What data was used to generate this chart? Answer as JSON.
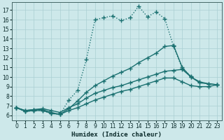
{
  "xlabel": "Humidex (Indice chaleur)",
  "xlim": [
    -0.5,
    23.5
  ],
  "ylim": [
    5.5,
    17.8
  ],
  "xticks": [
    0,
    1,
    2,
    3,
    4,
    5,
    6,
    7,
    8,
    9,
    10,
    11,
    12,
    13,
    14,
    15,
    16,
    17,
    18,
    19,
    20,
    21,
    22,
    23
  ],
  "yticks": [
    6,
    7,
    8,
    9,
    10,
    11,
    12,
    13,
    14,
    15,
    16,
    17
  ],
  "bg_color": "#cde8ea",
  "grid_color": "#aacfd2",
  "line_color": "#1a7070",
  "s1_x": [
    0,
    1,
    2,
    3,
    4,
    5,
    6,
    7,
    8,
    9,
    10,
    11,
    12,
    13,
    14,
    15,
    16,
    17,
    18,
    19,
    20
  ],
  "s1_y": [
    6.8,
    6.4,
    6.5,
    6.5,
    6.2,
    6.1,
    7.6,
    8.6,
    11.8,
    16.0,
    16.2,
    16.4,
    15.9,
    16.2,
    17.4,
    16.3,
    16.8,
    16.1,
    13.2,
    10.9,
    10.1
  ],
  "s1_style": ":",
  "s2_x": [
    0,
    1,
    2,
    3,
    4,
    5,
    6,
    7,
    8,
    9,
    10,
    11,
    12,
    13,
    14,
    15,
    16,
    17,
    18,
    19,
    20,
    21,
    22,
    23
  ],
  "s2_y": [
    6.8,
    6.4,
    6.5,
    6.5,
    6.2,
    6.1,
    6.7,
    7.5,
    8.4,
    9.1,
    9.6,
    10.1,
    10.5,
    10.9,
    11.5,
    12.0,
    12.5,
    13.2,
    13.3,
    11.0,
    10.0,
    9.5,
    9.3,
    9.2
  ],
  "s2_style": "-",
  "s3_x": [
    0,
    1,
    2,
    3,
    4,
    5,
    6,
    7,
    8,
    9,
    10,
    11,
    12,
    13,
    14,
    15,
    16,
    17,
    18,
    19,
    20,
    21,
    22,
    23
  ],
  "s3_y": [
    6.8,
    6.5,
    6.6,
    6.7,
    6.5,
    6.3,
    6.8,
    7.2,
    7.8,
    8.3,
    8.6,
    8.9,
    9.1,
    9.4,
    9.7,
    10.0,
    10.3,
    10.6,
    10.7,
    10.8,
    10.0,
    9.4,
    9.3,
    9.2
  ],
  "s3_style": "-",
  "s4_x": [
    0,
    1,
    2,
    3,
    4,
    5,
    6,
    7,
    8,
    9,
    10,
    11,
    12,
    13,
    14,
    15,
    16,
    17,
    18,
    19,
    20,
    21,
    22,
    23
  ],
  "s4_y": [
    6.8,
    6.5,
    6.6,
    6.6,
    6.3,
    6.1,
    6.5,
    6.8,
    7.2,
    7.6,
    7.9,
    8.2,
    8.5,
    8.7,
    9.0,
    9.3,
    9.6,
    9.9,
    9.9,
    9.5,
    9.1,
    9.0,
    9.0,
    9.2
  ],
  "s4_style": "-"
}
